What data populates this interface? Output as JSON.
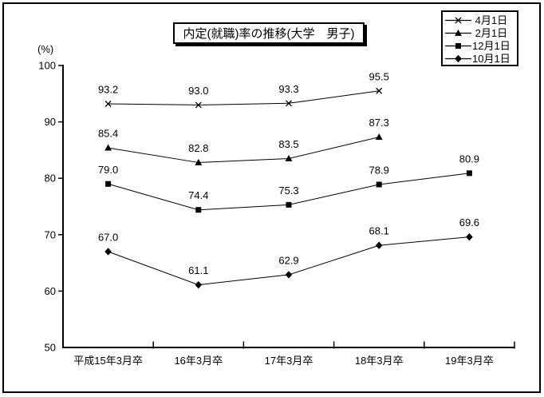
{
  "chart_data": {
    "type": "line",
    "title": "内定(就職)率の推移(大学　男子)",
    "y_unit_label": "(%)",
    "ylim": [
      50,
      100
    ],
    "yticks": [
      100,
      90,
      80,
      70,
      60,
      50
    ],
    "grid": "off",
    "legend_position": "top-right",
    "line_color": "#000000",
    "background_color": "#ffffff",
    "data_labels_shown": true,
    "data_label_decimals": 1,
    "categories": [
      "平成15年3月卒",
      "16年3月卒",
      "17年3月卒",
      "18年3月卒",
      "19年3月卒"
    ],
    "series": [
      {
        "id": "apr1",
        "name": "4月1日",
        "legend_label": " 4月1日",
        "marker": "x-cross",
        "color": "#000000",
        "values": [
          93.2,
          93.0,
          93.3,
          95.5,
          null
        ]
      },
      {
        "id": "feb1",
        "name": "2月1日",
        "legend_label": " 2月1日",
        "marker": "triangle",
        "color": "#000000",
        "values": [
          85.4,
          82.8,
          83.5,
          87.3,
          null
        ]
      },
      {
        "id": "dec1",
        "name": "12月1日",
        "legend_label": "12月1日",
        "marker": "square",
        "color": "#000000",
        "values": [
          79.0,
          74.4,
          75.3,
          78.9,
          80.9
        ]
      },
      {
        "id": "oct1",
        "name": "10月1日",
        "legend_label": "10月1日",
        "marker": "diamond",
        "color": "#000000",
        "values": [
          67.0,
          61.1,
          62.9,
          68.1,
          69.6
        ]
      }
    ]
  }
}
